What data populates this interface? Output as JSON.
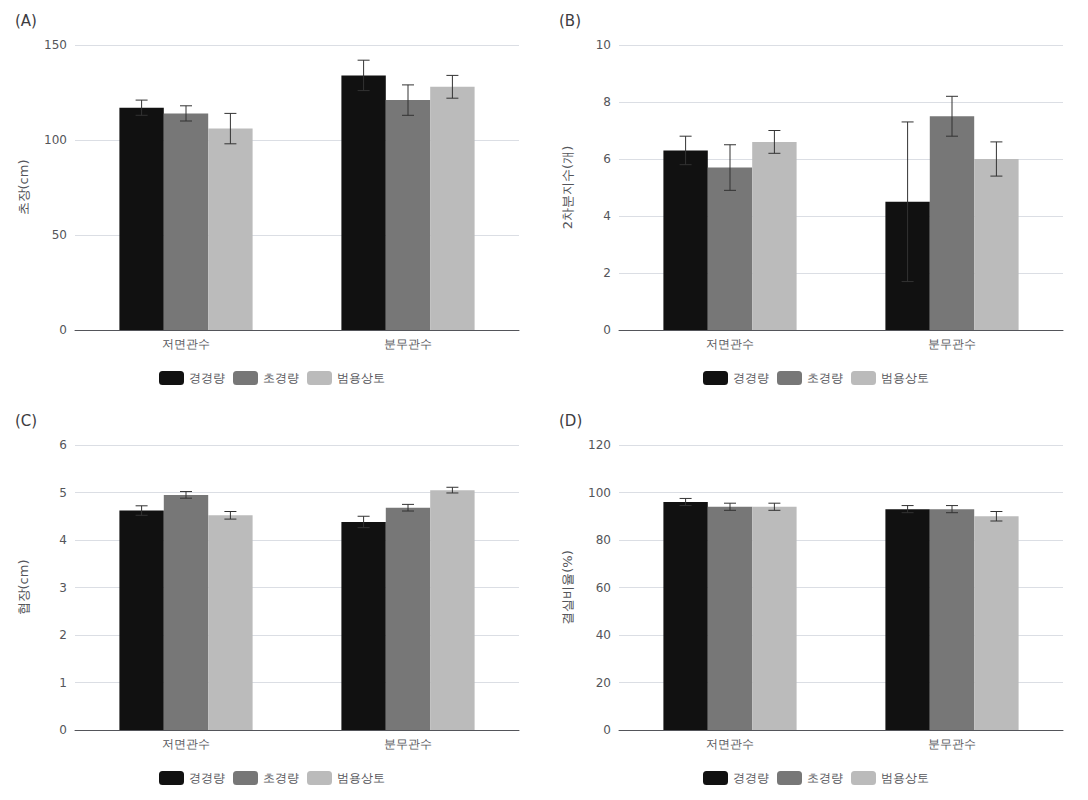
{
  "chart_data": [
    {
      "type": "bar",
      "title": "(A)",
      "ylabel": "초장(cm)",
      "categories": [
        "저면관수",
        "분무관수"
      ],
      "series": [
        {
          "name": "경경량",
          "color": "#111111",
          "values": [
            117,
            134
          ],
          "errors": [
            4,
            8
          ]
        },
        {
          "name": "초경량",
          "color": "#777777",
          "values": [
            114,
            121
          ],
          "errors": [
            4,
            8
          ]
        },
        {
          "name": "범용상토",
          "color": "#bbbbbb",
          "values": [
            106,
            128
          ],
          "errors": [
            8,
            6
          ]
        }
      ],
      "ylim": [
        0,
        150
      ],
      "yticks": [
        0,
        50,
        100,
        150
      ],
      "grid": true,
      "legend": "bottom"
    },
    {
      "type": "bar",
      "title": "(B)",
      "ylabel": "2차분지수(개)",
      "categories": [
        "저면관수",
        "분무관수"
      ],
      "series": [
        {
          "name": "경경량",
          "color": "#111111",
          "values": [
            6.3,
            4.5
          ],
          "errors": [
            0.5,
            2.8
          ]
        },
        {
          "name": "초경량",
          "color": "#777777",
          "values": [
            5.7,
            7.5
          ],
          "errors": [
            0.8,
            0.7
          ]
        },
        {
          "name": "범용상토",
          "color": "#bbbbbb",
          "values": [
            6.6,
            6.0
          ],
          "errors": [
            0.4,
            0.6
          ]
        }
      ],
      "ylim": [
        0,
        10
      ],
      "yticks": [
        0,
        2,
        4,
        6,
        8,
        10
      ],
      "grid": true,
      "legend": "bottom"
    },
    {
      "type": "bar",
      "title": "(C)",
      "ylabel": "협장(cm)",
      "categories": [
        "저면관수",
        "분무관수"
      ],
      "series": [
        {
          "name": "경경량",
          "color": "#111111",
          "values": [
            4.62,
            4.38
          ],
          "errors": [
            0.1,
            0.12
          ]
        },
        {
          "name": "초경량",
          "color": "#777777",
          "values": [
            4.95,
            4.68
          ],
          "errors": [
            0.07,
            0.07
          ]
        },
        {
          "name": "범용상토",
          "color": "#bbbbbb",
          "values": [
            4.52,
            5.05
          ],
          "errors": [
            0.08,
            0.06
          ]
        }
      ],
      "ylim": [
        0,
        6
      ],
      "yticks": [
        0,
        1,
        2,
        3,
        4,
        5,
        6
      ],
      "grid": true,
      "legend": "bottom"
    },
    {
      "type": "bar",
      "title": "(D)",
      "ylabel": "결실비율(%)",
      "categories": [
        "저면관수",
        "분무관수"
      ],
      "series": [
        {
          "name": "경경량",
          "color": "#111111",
          "values": [
            96,
            93
          ],
          "errors": [
            1.5,
            1.5
          ]
        },
        {
          "name": "초경량",
          "color": "#777777",
          "values": [
            94,
            93
          ],
          "errors": [
            1.5,
            1.5
          ]
        },
        {
          "name": "범용상토",
          "color": "#bbbbbb",
          "values": [
            94,
            90
          ],
          "errors": [
            1.5,
            2.0
          ]
        }
      ],
      "ylim": [
        0,
        120
      ],
      "yticks": [
        0,
        20,
        40,
        60,
        80,
        100,
        120
      ],
      "grid": true,
      "legend": "bottom"
    }
  ]
}
